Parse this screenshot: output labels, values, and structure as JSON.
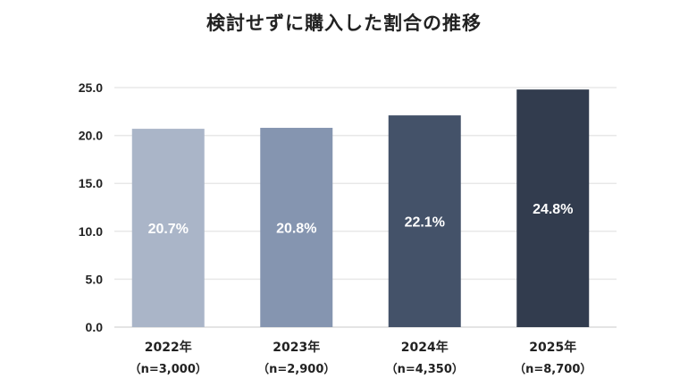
{
  "chart_data": {
    "type": "bar",
    "title": "検討せずに購入した割合の推移",
    "xlabel": "",
    "ylabel": "",
    "ylim": [
      0,
      25
    ],
    "yticks": [
      "0.0",
      "5.0",
      "10.0",
      "15.0",
      "20.0",
      "25.0"
    ],
    "grid": true,
    "categories": [
      "2022年",
      "2023年",
      "2024年",
      "2025年"
    ],
    "sample_sizes": [
      "（n=3,000）",
      "（n=2,900）",
      "（n=4,350）",
      "（n=8,700）"
    ],
    "values": [
      20.7,
      20.8,
      22.1,
      24.8
    ],
    "data_labels": [
      "20.7%",
      "20.8%",
      "22.1%",
      "24.8%"
    ],
    "colors": [
      "#aab5c8",
      "#8595b0",
      "#445269",
      "#323c4e"
    ]
  }
}
